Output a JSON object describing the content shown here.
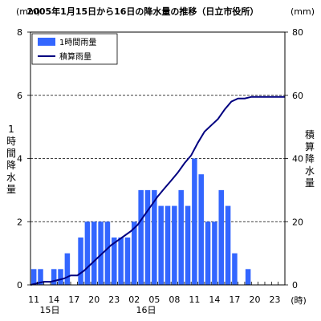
{
  "chart_data": {
    "type": "bar+line",
    "title": "2005年1月15日から16日の降水量の推移（日立市役所）",
    "left_unit": "(mm)",
    "right_unit": "(mm)",
    "ylabel_left": "1時間降水量",
    "ylabel_right": "積算降水量",
    "ylim_left": [
      0,
      8
    ],
    "ylim_right": [
      0,
      80
    ],
    "yticks_left": [
      "0",
      "2",
      "4",
      "6",
      "8"
    ],
    "yticks_right": [
      "0",
      "20",
      "40",
      "60",
      "80"
    ],
    "x_hours": [
      11,
      12,
      13,
      14,
      15,
      16,
      17,
      18,
      19,
      20,
      21,
      22,
      23,
      0,
      1,
      2,
      3,
      4,
      5,
      6,
      7,
      8,
      9,
      10,
      11,
      12,
      13,
      14,
      15,
      16,
      17,
      18,
      19,
      20,
      21,
      22,
      23,
      0
    ],
    "x_tick_labels": [
      "11",
      "14",
      "17",
      "20",
      "23",
      "02",
      "05",
      "08",
      "11",
      "14",
      "17",
      "20",
      "23"
    ],
    "day_labels": [
      "15日",
      "16日"
    ],
    "x_unit": "(時)",
    "legend": [
      "1時間雨量",
      "積算雨量"
    ],
    "legend_position": "top-left",
    "grid": "dashed horizontal at 2, 4, 6",
    "colors": {
      "bar": "#3366ff",
      "line": "#000080"
    },
    "hourly_rainfall": [
      0.5,
      0.5,
      0,
      0.5,
      0.5,
      1.0,
      0,
      1.5,
      2.0,
      2.0,
      2.0,
      2.0,
      1.5,
      1.5,
      1.5,
      2.0,
      3.0,
      3.0,
      3.0,
      2.5,
      2.5,
      2.5,
      3.0,
      2.5,
      4.0,
      3.5,
      2.0,
      2.0,
      3.0,
      2.5,
      1.0,
      0,
      0.5,
      0,
      0,
      0,
      0,
      0
    ],
    "cumulative_rainfall": [
      0.5,
      1.0,
      1.0,
      1.5,
      2.0,
      3.0,
      3.0,
      4.5,
      6.5,
      8.5,
      10.5,
      12.5,
      14.0,
      15.5,
      17.0,
      19.0,
      22.0,
      25.0,
      28.0,
      30.5,
      33.0,
      35.5,
      38.5,
      41.0,
      45.0,
      48.5,
      50.5,
      52.5,
      55.5,
      58.0,
      59.0,
      59.0,
      59.5,
      59.5,
      59.5,
      59.5,
      59.5,
      59.5
    ]
  }
}
